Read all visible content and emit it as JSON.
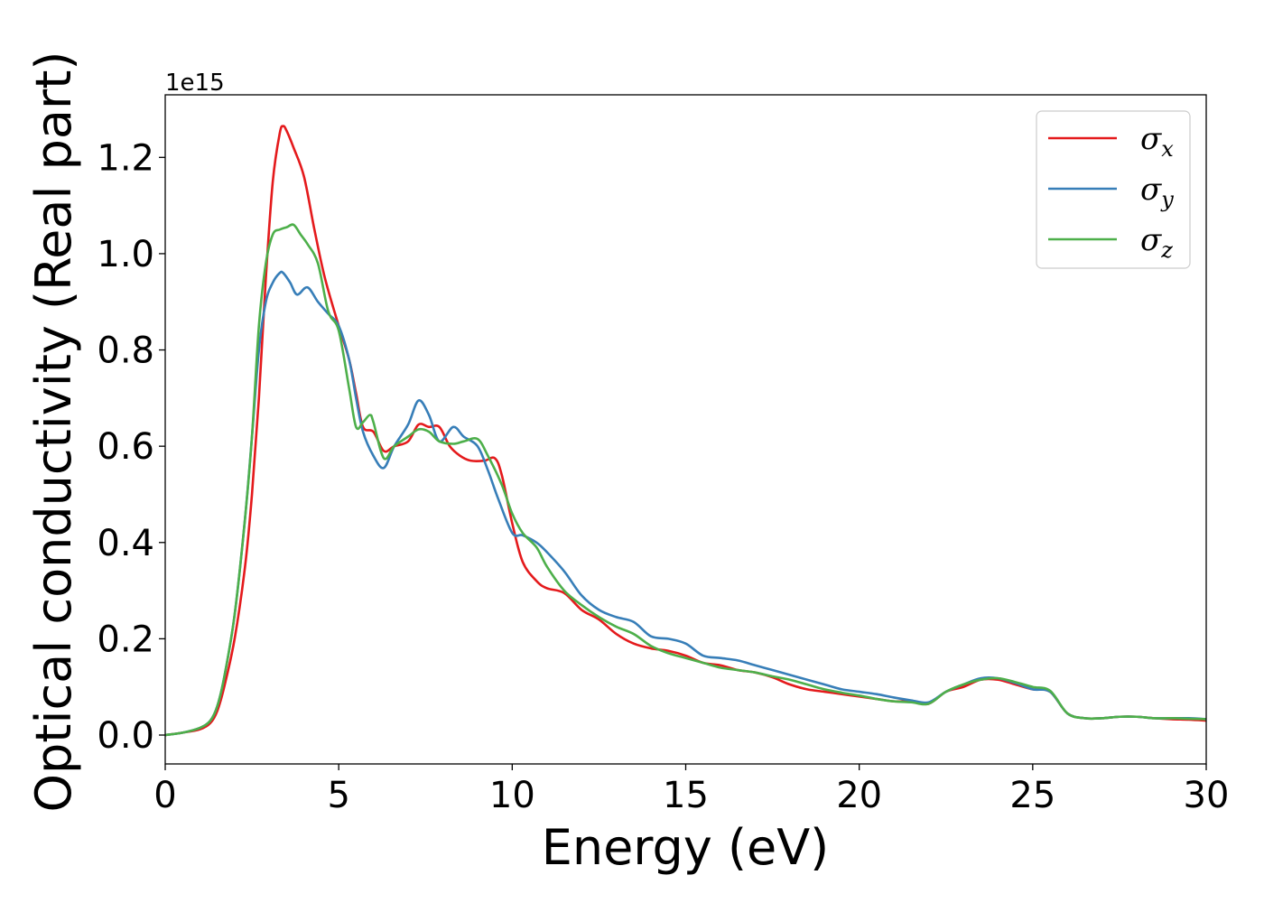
{
  "chart_data": {
    "type": "line",
    "xlabel": "Energy (eV)",
    "ylabel": "Optical conductivity (Real part)",
    "y_offset_label": "1e15",
    "y_scale": 1000000000000000.0,
    "xlim": [
      0,
      30
    ],
    "ylim": [
      -0.06,
      1.33
    ],
    "x_ticks": [
      0,
      5,
      10,
      15,
      20,
      25,
      30
    ],
    "y_ticks": [
      0.0,
      0.2,
      0.4,
      0.6,
      0.8,
      1.0,
      1.2
    ],
    "x_tick_labels": [
      "0",
      "5",
      "10",
      "15",
      "20",
      "25",
      "30"
    ],
    "y_tick_labels": [
      "0.0",
      "0.2",
      "0.4",
      "0.6",
      "0.8",
      "1.0",
      "1.2"
    ],
    "grid": false,
    "legend_position": "top-right",
    "series": [
      {
        "name": "σx",
        "name_base": "σ",
        "name_sub": "x",
        "color": "#e41a1c",
        "x": [
          0,
          0.5,
          1.0,
          1.3,
          1.5,
          1.7,
          2.0,
          2.3,
          2.5,
          2.7,
          2.9,
          3.1,
          3.3,
          3.4,
          3.5,
          3.7,
          4.0,
          4.3,
          4.6,
          5.0,
          5.3,
          5.5,
          5.7,
          6.0,
          6.3,
          6.6,
          7.0,
          7.3,
          7.6,
          7.9,
          8.2,
          8.5,
          8.8,
          9.2,
          9.5,
          9.7,
          10.0,
          10.3,
          10.7,
          11.0,
          11.5,
          12.0,
          12.5,
          13.0,
          13.5,
          14.0,
          14.5,
          15.0,
          15.5,
          16.0,
          16.5,
          17.0,
          17.5,
          18.0,
          18.5,
          19.0,
          19.5,
          20.0,
          20.5,
          21.0,
          21.5,
          22.0,
          22.5,
          23.0,
          23.5,
          24.0,
          24.5,
          25.0,
          25.5,
          26.0,
          26.5,
          27.0,
          27.5,
          28.0,
          28.5,
          29.0,
          29.5,
          30.0
        ],
        "values": [
          0.0,
          0.005,
          0.012,
          0.025,
          0.05,
          0.1,
          0.2,
          0.35,
          0.5,
          0.7,
          0.95,
          1.15,
          1.25,
          1.265,
          1.255,
          1.22,
          1.16,
          1.05,
          0.95,
          0.85,
          0.78,
          0.71,
          0.64,
          0.63,
          0.59,
          0.6,
          0.61,
          0.645,
          0.64,
          0.64,
          0.6,
          0.58,
          0.57,
          0.57,
          0.575,
          0.54,
          0.44,
          0.36,
          0.32,
          0.305,
          0.295,
          0.26,
          0.24,
          0.21,
          0.19,
          0.18,
          0.175,
          0.165,
          0.15,
          0.145,
          0.135,
          0.13,
          0.12,
          0.105,
          0.095,
          0.09,
          0.085,
          0.08,
          0.075,
          0.07,
          0.07,
          0.065,
          0.09,
          0.1,
          0.115,
          0.115,
          0.105,
          0.095,
          0.09,
          0.045,
          0.035,
          0.035,
          0.038,
          0.038,
          0.035,
          0.033,
          0.032,
          0.03
        ]
      },
      {
        "name": "σy",
        "name_base": "σ",
        "name_sub": "y",
        "color": "#377eb8",
        "x": [
          0,
          0.5,
          1.0,
          1.3,
          1.5,
          1.7,
          2.0,
          2.3,
          2.5,
          2.7,
          2.9,
          3.1,
          3.3,
          3.4,
          3.6,
          3.8,
          4.1,
          4.4,
          4.7,
          5.0,
          5.3,
          5.5,
          5.7,
          6.0,
          6.3,
          6.6,
          7.0,
          7.3,
          7.6,
          7.9,
          8.3,
          8.6,
          9.0,
          9.3,
          9.6,
          10.0,
          10.3,
          10.7,
          11.0,
          11.5,
          12.0,
          12.5,
          13.0,
          13.5,
          14.0,
          14.5,
          15.0,
          15.5,
          16.0,
          16.5,
          17.0,
          17.5,
          18.0,
          18.5,
          19.0,
          19.5,
          20.0,
          20.5,
          21.0,
          21.5,
          22.0,
          22.5,
          23.0,
          23.5,
          24.0,
          24.5,
          25.0,
          25.5,
          26.0,
          26.5,
          27.0,
          27.5,
          28.0,
          28.5,
          29.0,
          29.5,
          30.0
        ],
        "values": [
          0.0,
          0.005,
          0.015,
          0.03,
          0.06,
          0.12,
          0.25,
          0.45,
          0.62,
          0.8,
          0.9,
          0.94,
          0.96,
          0.96,
          0.94,
          0.915,
          0.93,
          0.9,
          0.875,
          0.85,
          0.78,
          0.7,
          0.63,
          0.58,
          0.555,
          0.6,
          0.645,
          0.695,
          0.665,
          0.61,
          0.64,
          0.62,
          0.6,
          0.55,
          0.49,
          0.42,
          0.415,
          0.4,
          0.38,
          0.34,
          0.29,
          0.26,
          0.245,
          0.235,
          0.205,
          0.2,
          0.19,
          0.165,
          0.16,
          0.155,
          0.145,
          0.135,
          0.125,
          0.115,
          0.105,
          0.095,
          0.09,
          0.085,
          0.078,
          0.072,
          0.068,
          0.09,
          0.105,
          0.118,
          0.118,
          0.108,
          0.095,
          0.09,
          0.045,
          0.035,
          0.035,
          0.038,
          0.038,
          0.035,
          0.035,
          0.035,
          0.033
        ]
      },
      {
        "name": "σz",
        "name_base": "σ",
        "name_sub": "z",
        "color": "#4daf4a",
        "x": [
          0,
          0.5,
          1.0,
          1.3,
          1.5,
          1.7,
          2.0,
          2.3,
          2.5,
          2.7,
          2.9,
          3.1,
          3.3,
          3.5,
          3.7,
          3.9,
          4.1,
          4.4,
          4.7,
          5.0,
          5.3,
          5.5,
          5.7,
          5.9,
          6.0,
          6.3,
          6.6,
          7.0,
          7.3,
          7.6,
          7.9,
          8.3,
          8.6,
          9.0,
          9.3,
          9.7,
          10.0,
          10.3,
          10.7,
          11.0,
          11.5,
          12.0,
          12.5,
          13.0,
          13.5,
          14.0,
          14.5,
          15.0,
          15.5,
          16.0,
          16.5,
          17.0,
          17.5,
          18.0,
          18.5,
          19.0,
          19.5,
          20.0,
          20.5,
          21.0,
          21.5,
          22.0,
          22.5,
          23.0,
          23.5,
          24.0,
          24.5,
          25.0,
          25.5,
          26.0,
          26.5,
          27.0,
          27.5,
          28.0,
          28.5,
          29.0,
          29.5,
          30.0
        ],
        "values": [
          0.0,
          0.005,
          0.015,
          0.03,
          0.06,
          0.12,
          0.25,
          0.45,
          0.62,
          0.85,
          0.98,
          1.04,
          1.05,
          1.055,
          1.06,
          1.04,
          1.02,
          0.98,
          0.88,
          0.84,
          0.72,
          0.64,
          0.65,
          0.665,
          0.65,
          0.575,
          0.6,
          0.62,
          0.635,
          0.63,
          0.61,
          0.605,
          0.61,
          0.615,
          0.58,
          0.52,
          0.46,
          0.42,
          0.39,
          0.35,
          0.3,
          0.27,
          0.245,
          0.225,
          0.21,
          0.185,
          0.17,
          0.16,
          0.15,
          0.14,
          0.135,
          0.13,
          0.122,
          0.115,
          0.105,
          0.095,
          0.088,
          0.082,
          0.075,
          0.07,
          0.068,
          0.065,
          0.09,
          0.105,
          0.115,
          0.118,
          0.11,
          0.1,
          0.092,
          0.045,
          0.035,
          0.035,
          0.038,
          0.038,
          0.035,
          0.035,
          0.034,
          0.033
        ]
      }
    ]
  }
}
